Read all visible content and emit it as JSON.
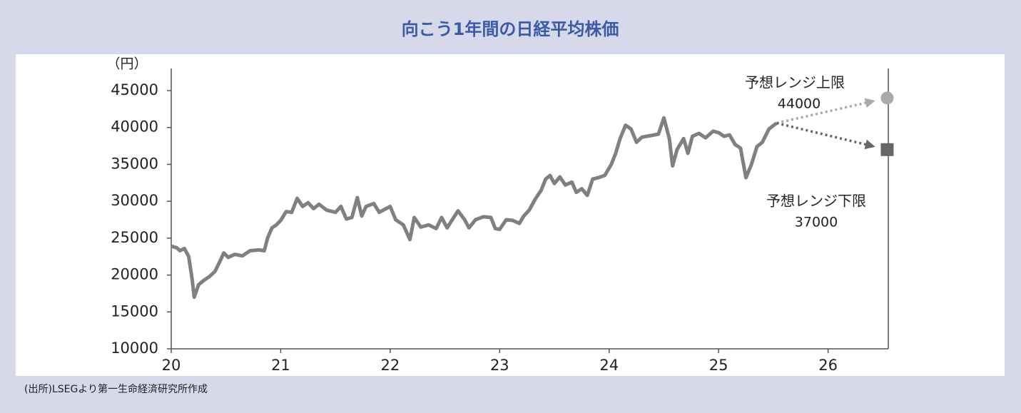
{
  "chart_data": {
    "type": "line",
    "title": "向こう1年間の日経平均株価",
    "y_label": "（円）",
    "source": "(出所)LSEGより第一生命経済研究所作成",
    "color": "#808080",
    "x": [
      20.0,
      20.05,
      20.08,
      20.12,
      20.16,
      20.19,
      20.21,
      20.25,
      20.3,
      20.35,
      20.4,
      20.45,
      20.48,
      20.52,
      20.58,
      20.65,
      20.72,
      20.8,
      20.85,
      20.88,
      20.92,
      20.96,
      21.0,
      21.05,
      21.1,
      21.15,
      21.2,
      21.25,
      21.3,
      21.35,
      21.42,
      21.5,
      21.55,
      21.6,
      21.65,
      21.7,
      21.74,
      21.78,
      21.85,
      21.9,
      21.95,
      22.0,
      22.05,
      22.12,
      22.18,
      22.22,
      22.28,
      22.35,
      22.42,
      22.47,
      22.52,
      22.58,
      22.62,
      22.68,
      22.72,
      22.78,
      22.85,
      22.92,
      22.96,
      23.0,
      23.06,
      23.12,
      23.18,
      23.22,
      23.27,
      23.33,
      23.38,
      23.42,
      23.46,
      23.5,
      23.55,
      23.6,
      23.66,
      23.7,
      23.75,
      23.8,
      23.85,
      23.9,
      23.96,
      24.02,
      24.06,
      24.1,
      24.15,
      24.2,
      24.25,
      24.3,
      24.38,
      24.45,
      24.5,
      24.55,
      24.58,
      24.62,
      24.68,
      24.72,
      24.76,
      24.82,
      24.88,
      24.95,
      25.0,
      25.05,
      25.1,
      25.15,
      25.2,
      25.25,
      25.3,
      25.35,
      25.4,
      25.46,
      25.53
    ],
    "values": [
      23900,
      23700,
      23300,
      23600,
      22500,
      19500,
      17000,
      18700,
      19300,
      19800,
      20500,
      22000,
      23000,
      22400,
      22800,
      22600,
      23300,
      23400,
      23300,
      25000,
      26400,
      26800,
      27400,
      28600,
      28500,
      30400,
      29300,
      29800,
      29000,
      29600,
      28800,
      28500,
      29300,
      27600,
      27800,
      30500,
      28000,
      29300,
      29700,
      28500,
      28900,
      29300,
      27500,
      26800,
      24800,
      27800,
      26500,
      26800,
      26300,
      27800,
      26400,
      27800,
      28700,
      27500,
      26400,
      27500,
      27900,
      27800,
      26300,
      26200,
      27500,
      27400,
      27000,
      28000,
      28800,
      30400,
      31500,
      33000,
      33500,
      32400,
      33300,
      32200,
      32600,
      31200,
      31700,
      30800,
      33000,
      33200,
      33500,
      35000,
      36500,
      38500,
      40300,
      39800,
      38000,
      38700,
      38900,
      39100,
      41300,
      38500,
      34800,
      37000,
      38500,
      36500,
      38800,
      39200,
      38600,
      39500,
      39300,
      38800,
      39000,
      37700,
      37200,
      33200,
      35000,
      37400,
      38000,
      39800,
      40600
    ],
    "projection": {
      "x": 26.54,
      "upper": {
        "label": "予想レンジ上限",
        "value": 44000,
        "color": "#aaaaaa"
      },
      "lower": {
        "label": "予想レンジ下限",
        "value": 37000,
        "color": "#666666"
      }
    },
    "xlim": [
      20,
      26.55
    ],
    "xticks": [
      20,
      21,
      22,
      23,
      24,
      25,
      26
    ],
    "ylim": [
      10000,
      48000
    ],
    "yticks": [
      10000,
      15000,
      20000,
      25000,
      30000,
      35000,
      40000,
      45000
    ],
    "grid": false
  }
}
